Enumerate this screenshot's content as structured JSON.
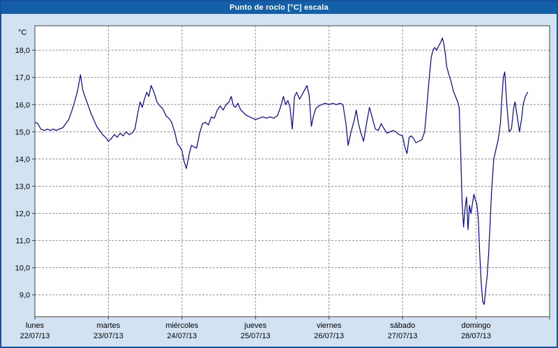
{
  "window": {
    "title": "Punto de rocío [°C] escala"
  },
  "colors": {
    "frame_background": "#d2e2f2",
    "title_bar": "#1460a8",
    "title_text": "#ffffff",
    "plot_background": "#ffffff",
    "grid": "#909090",
    "axis": "#404040",
    "line": "#0000a0",
    "label_text": "#000000"
  },
  "chart_data": {
    "type": "line",
    "title": "Punto de rocío [°C] escala",
    "ylabel_unit": "°C",
    "ylim": [
      8.2,
      18.9
    ],
    "grid": "dashed",
    "legend": "none",
    "y_axis_ticks": [
      {
        "value": 18,
        "label": "18,0"
      },
      {
        "value": 17,
        "label": "17,0"
      },
      {
        "value": 16,
        "label": "16,0"
      },
      {
        "value": 15,
        "label": "15,0"
      },
      {
        "value": 14,
        "label": "14,0"
      },
      {
        "value": 13,
        "label": "13,0"
      },
      {
        "value": 12,
        "label": "12,0"
      },
      {
        "value": 11,
        "label": "11,0"
      },
      {
        "value": 10,
        "label": "10,0"
      },
      {
        "value": 9,
        "label": "9,0"
      }
    ],
    "x_axis_days": [
      {
        "name": "lunes",
        "date": "22/07/13"
      },
      {
        "name": "martes",
        "date": "23/07/13"
      },
      {
        "name": "miércoles",
        "date": "24/07/13"
      },
      {
        "name": "jueves",
        "date": "25/07/13"
      },
      {
        "name": "viernes",
        "date": "26/07/13"
      },
      {
        "name": "sábado",
        "date": "27/07/13"
      },
      {
        "name": "domingo",
        "date": "28/07/13"
      }
    ],
    "series": [
      {
        "name": "Punto de rocío [°C]",
        "color": "#0000a0",
        "x_unit": "days_from_start",
        "points": [
          [
            0.0,
            15.35
          ],
          [
            0.04,
            15.3
          ],
          [
            0.08,
            15.1
          ],
          [
            0.13,
            15.05
          ],
          [
            0.17,
            15.1
          ],
          [
            0.21,
            15.05
          ],
          [
            0.25,
            15.1
          ],
          [
            0.29,
            15.05
          ],
          [
            0.33,
            15.1
          ],
          [
            0.38,
            15.15
          ],
          [
            0.42,
            15.3
          ],
          [
            0.46,
            15.45
          ],
          [
            0.5,
            15.75
          ],
          [
            0.54,
            16.1
          ],
          [
            0.58,
            16.5
          ],
          [
            0.62,
            17.1
          ],
          [
            0.65,
            16.55
          ],
          [
            0.68,
            16.3
          ],
          [
            0.72,
            16.0
          ],
          [
            0.76,
            15.7
          ],
          [
            0.8,
            15.45
          ],
          [
            0.84,
            15.2
          ],
          [
            0.88,
            15.05
          ],
          [
            0.92,
            14.9
          ],
          [
            0.96,
            14.8
          ],
          [
            1.0,
            14.65
          ],
          [
            1.04,
            14.75
          ],
          [
            1.08,
            14.9
          ],
          [
            1.12,
            14.8
          ],
          [
            1.16,
            14.95
          ],
          [
            1.2,
            14.85
          ],
          [
            1.24,
            15.0
          ],
          [
            1.28,
            14.9
          ],
          [
            1.32,
            14.95
          ],
          [
            1.36,
            15.1
          ],
          [
            1.4,
            15.7
          ],
          [
            1.43,
            16.1
          ],
          [
            1.46,
            15.9
          ],
          [
            1.49,
            16.2
          ],
          [
            1.52,
            16.45
          ],
          [
            1.55,
            16.3
          ],
          [
            1.58,
            16.7
          ],
          [
            1.62,
            16.45
          ],
          [
            1.66,
            16.1
          ],
          [
            1.7,
            15.95
          ],
          [
            1.74,
            15.85
          ],
          [
            1.78,
            15.6
          ],
          [
            1.82,
            15.5
          ],
          [
            1.86,
            15.35
          ],
          [
            1.9,
            15.0
          ],
          [
            1.94,
            14.55
          ],
          [
            1.97,
            14.45
          ],
          [
            2.0,
            14.3
          ],
          [
            2.03,
            13.9
          ],
          [
            2.06,
            13.65
          ],
          [
            2.1,
            14.2
          ],
          [
            2.13,
            14.5
          ],
          [
            2.16,
            14.45
          ],
          [
            2.2,
            14.4
          ],
          [
            2.24,
            14.95
          ],
          [
            2.28,
            15.3
          ],
          [
            2.32,
            15.35
          ],
          [
            2.36,
            15.25
          ],
          [
            2.4,
            15.55
          ],
          [
            2.44,
            15.5
          ],
          [
            2.48,
            15.8
          ],
          [
            2.52,
            15.95
          ],
          [
            2.56,
            15.8
          ],
          [
            2.6,
            16.0
          ],
          [
            2.64,
            16.1
          ],
          [
            2.67,
            16.3
          ],
          [
            2.7,
            15.95
          ],
          [
            2.73,
            15.9
          ],
          [
            2.76,
            16.05
          ],
          [
            2.8,
            15.8
          ],
          [
            2.84,
            15.7
          ],
          [
            2.88,
            15.6
          ],
          [
            2.92,
            15.55
          ],
          [
            2.96,
            15.5
          ],
          [
            3.0,
            15.45
          ],
          [
            3.05,
            15.5
          ],
          [
            3.1,
            15.55
          ],
          [
            3.15,
            15.5
          ],
          [
            3.2,
            15.55
          ],
          [
            3.25,
            15.5
          ],
          [
            3.3,
            15.6
          ],
          [
            3.34,
            15.9
          ],
          [
            3.38,
            16.3
          ],
          [
            3.41,
            16.0
          ],
          [
            3.44,
            16.15
          ],
          [
            3.47,
            15.9
          ],
          [
            3.5,
            15.1
          ],
          [
            3.53,
            16.3
          ],
          [
            3.56,
            16.45
          ],
          [
            3.6,
            16.2
          ],
          [
            3.64,
            16.4
          ],
          [
            3.67,
            16.55
          ],
          [
            3.7,
            16.7
          ],
          [
            3.73,
            16.35
          ],
          [
            3.76,
            15.2
          ],
          [
            3.79,
            15.6
          ],
          [
            3.82,
            15.85
          ],
          [
            3.86,
            15.95
          ],
          [
            3.9,
            16.0
          ],
          [
            3.95,
            16.05
          ],
          [
            4.0,
            16.0
          ],
          [
            4.05,
            16.05
          ],
          [
            4.1,
            16.0
          ],
          [
            4.15,
            16.05
          ],
          [
            4.19,
            16.0
          ],
          [
            4.23,
            15.3
          ],
          [
            4.26,
            14.5
          ],
          [
            4.3,
            15.0
          ],
          [
            4.34,
            15.4
          ],
          [
            4.37,
            15.8
          ],
          [
            4.4,
            15.3
          ],
          [
            4.44,
            14.9
          ],
          [
            4.47,
            14.65
          ],
          [
            4.51,
            15.3
          ],
          [
            4.55,
            15.9
          ],
          [
            4.59,
            15.5
          ],
          [
            4.63,
            15.1
          ],
          [
            4.67,
            15.05
          ],
          [
            4.71,
            15.3
          ],
          [
            4.75,
            15.1
          ],
          [
            4.79,
            14.95
          ],
          [
            4.83,
            15.0
          ],
          [
            4.87,
            15.05
          ],
          [
            4.91,
            15.0
          ],
          [
            4.95,
            14.9
          ],
          [
            5.0,
            14.85
          ],
          [
            5.03,
            14.45
          ],
          [
            5.06,
            14.2
          ],
          [
            5.09,
            14.8
          ],
          [
            5.12,
            14.85
          ],
          [
            5.15,
            14.75
          ],
          [
            5.18,
            14.6
          ],
          [
            5.22,
            14.65
          ],
          [
            5.26,
            14.7
          ],
          [
            5.3,
            15.0
          ],
          [
            5.33,
            15.9
          ],
          [
            5.36,
            16.9
          ],
          [
            5.39,
            17.75
          ],
          [
            5.42,
            18.05
          ],
          [
            5.44,
            18.1
          ],
          [
            5.46,
            18.0
          ],
          [
            5.48,
            18.1
          ],
          [
            5.5,
            18.2
          ],
          [
            5.52,
            18.3
          ],
          [
            5.54,
            18.45
          ],
          [
            5.56,
            18.25
          ],
          [
            5.58,
            17.9
          ],
          [
            5.6,
            17.4
          ],
          [
            5.63,
            17.1
          ],
          [
            5.66,
            16.85
          ],
          [
            5.69,
            16.5
          ],
          [
            5.72,
            16.3
          ],
          [
            5.75,
            16.1
          ],
          [
            5.77,
            15.9
          ],
          [
            5.79,
            14.3
          ],
          [
            5.81,
            12.4
          ],
          [
            5.83,
            11.5
          ],
          [
            5.85,
            12.2
          ],
          [
            5.87,
            12.6
          ],
          [
            5.89,
            11.4
          ],
          [
            5.91,
            12.3
          ],
          [
            5.93,
            12.0
          ],
          [
            5.95,
            12.35
          ],
          [
            5.97,
            12.7
          ],
          [
            5.99,
            12.5
          ],
          [
            6.01,
            12.35
          ],
          [
            6.03,
            11.8
          ],
          [
            6.05,
            10.5
          ],
          [
            6.07,
            9.4
          ],
          [
            6.09,
            8.75
          ],
          [
            6.11,
            8.65
          ],
          [
            6.13,
            9.2
          ],
          [
            6.15,
            9.7
          ],
          [
            6.17,
            10.5
          ],
          [
            6.19,
            11.6
          ],
          [
            6.21,
            12.8
          ],
          [
            6.24,
            14.0
          ],
          [
            6.27,
            14.35
          ],
          [
            6.3,
            14.7
          ],
          [
            6.33,
            15.3
          ],
          [
            6.35,
            16.2
          ],
          [
            6.37,
            17.0
          ],
          [
            6.39,
            17.2
          ],
          [
            6.41,
            16.3
          ],
          [
            6.43,
            15.6
          ],
          [
            6.45,
            15.0
          ],
          [
            6.48,
            15.1
          ],
          [
            6.51,
            15.85
          ],
          [
            6.53,
            16.1
          ],
          [
            6.56,
            15.55
          ],
          [
            6.59,
            15.0
          ],
          [
            6.62,
            15.5
          ],
          [
            6.64,
            16.0
          ],
          [
            6.67,
            16.3
          ],
          [
            6.7,
            16.45
          ]
        ]
      }
    ]
  }
}
